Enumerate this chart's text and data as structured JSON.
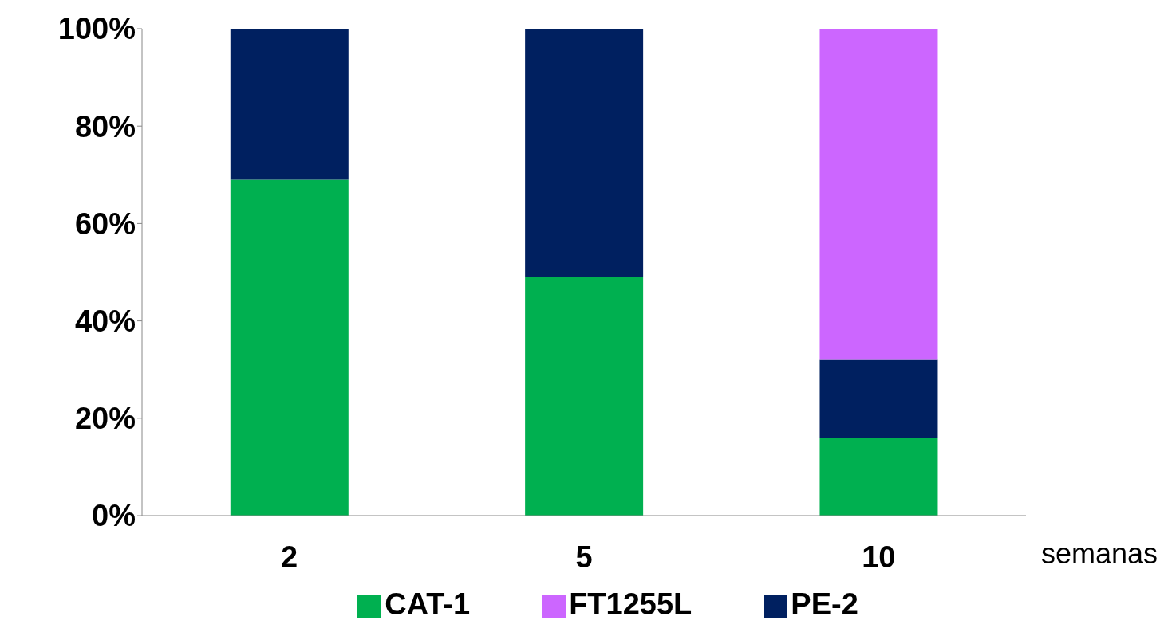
{
  "chart_data": {
    "type": "bar",
    "stacked": true,
    "xlabel": "semanas",
    "categories": [
      "2",
      "5",
      "10"
    ],
    "series": [
      {
        "name": "CAT-1",
        "color": "#00b050",
        "values": [
          69,
          49,
          16
        ]
      },
      {
        "name": "PE-2",
        "color": "#002060",
        "values": [
          31,
          51,
          16
        ]
      },
      {
        "name": "FT1255L",
        "color": "#cc66ff",
        "values": [
          0,
          0,
          68
        ]
      }
    ],
    "ylim": [
      0,
      100
    ],
    "yticks": [
      {
        "value": 0,
        "label": "0%"
      },
      {
        "value": 20,
        "label": "20%"
      },
      {
        "value": 40,
        "label": "40%"
      },
      {
        "value": 60,
        "label": "60%"
      },
      {
        "value": 80,
        "label": "80%"
      },
      {
        "value": 100,
        "label": "100%"
      }
    ],
    "grid": false,
    "legend": "bottom"
  }
}
